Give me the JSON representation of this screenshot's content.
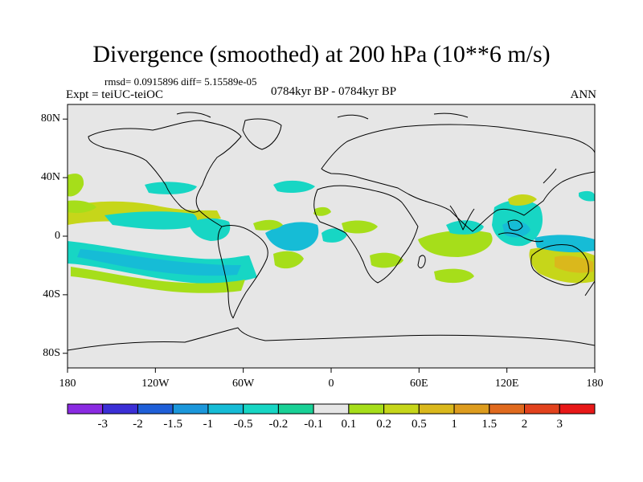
{
  "title": "Divergence (smoothed) at 200 hPa (10**6 m/s)",
  "stats": "rmsd= 0.0915896 diff= 5.15589e-05",
  "experiment": "Expt = teiUC-teiOC",
  "period": "0784kyr BP - 0784kyr BP",
  "season": "ANN",
  "axes": {
    "y_labels": [
      {
        "text": "80N",
        "lat": 80
      },
      {
        "text": "40N",
        "lat": 40
      },
      {
        "text": "0",
        "lat": 0
      },
      {
        "text": "40S",
        "lat": -40
      },
      {
        "text": "80S",
        "lat": -80
      }
    ],
    "x_labels": [
      {
        "text": "180",
        "lon": -180
      },
      {
        "text": "120W",
        "lon": -120
      },
      {
        "text": "60W",
        "lon": -60
      },
      {
        "text": "0",
        "lon": 0
      },
      {
        "text": "60E",
        "lon": 60
      },
      {
        "text": "120E",
        "lon": 120
      },
      {
        "text": "180",
        "lon": 180
      }
    ]
  },
  "colorbar": {
    "colors": [
      "#8a2be2",
      "#3b2fd6",
      "#1f5fd8",
      "#1b97db",
      "#16bcd6",
      "#17d6c4",
      "#19d196",
      "#e6e6e6",
      "#a6de1a",
      "#c6d61a",
      "#dab81c",
      "#dd9c1e",
      "#e06a1e",
      "#e2421d",
      "#e81818"
    ],
    "labels": [
      "-3",
      "-2",
      "-1.5",
      "-1",
      "-0.5",
      "-0.2",
      "-0.1",
      "0.1",
      "0.2",
      "0.5",
      "1",
      "1.5",
      "2",
      "3"
    ]
  },
  "field_colors": {
    "background": "#e6e6e6",
    "neg_light": "#19d196",
    "neg_mid": "#17d6c4",
    "neg_dark": "#16bcd6",
    "pos_light": "#a6de1a",
    "pos_mid": "#c6d61a",
    "pos_dark": "#dab81c"
  }
}
